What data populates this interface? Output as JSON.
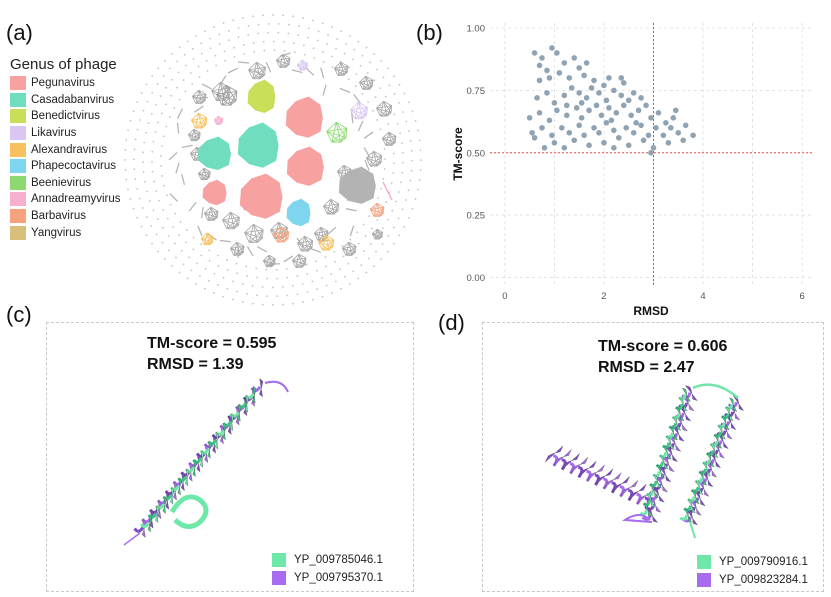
{
  "panels": {
    "a": {
      "label": "(a)"
    },
    "b": {
      "label": "(b)"
    },
    "c": {
      "label": "(c)"
    },
    "d": {
      "label": "(d)"
    }
  },
  "legend_a": {
    "title": "Genus of phage",
    "items": [
      {
        "label": "Pegunavirus",
        "color": "#F7A1A1"
      },
      {
        "label": "Casadabanvirus",
        "color": "#6FDDBE"
      },
      {
        "label": "Benedictvirus",
        "color": "#C9DE59"
      },
      {
        "label": "Likavirus",
        "color": "#D9C6F3"
      },
      {
        "label": "Alexandravirus",
        "color": "#F7C15E"
      },
      {
        "label": "Phapecoctavirus",
        "color": "#7ED6EE"
      },
      {
        "label": "Beenievirus",
        "color": "#8CD970"
      },
      {
        "label": "Annadreamyvirus",
        "color": "#F6AFCF"
      },
      {
        "label": "Barbavirus",
        "color": "#F7A27D"
      },
      {
        "label": "Yangvirus",
        "color": "#D9C07A"
      }
    ]
  },
  "chart_data": {
    "type": "scatter",
    "title": "",
    "xlabel": "RMSD",
    "ylabel": "TM-score",
    "xlim": [
      -0.3,
      6.2
    ],
    "ylim": [
      -0.03,
      1.02
    ],
    "xticks": [
      "0",
      "2",
      "4",
      "6"
    ],
    "xtick_values": [
      0,
      2,
      4,
      6
    ],
    "yticks": [
      "0.00",
      "0.25",
      "0.50",
      "0.75",
      "1.00"
    ],
    "ytick_values": [
      0,
      0.25,
      0.5,
      0.75,
      1.0
    ],
    "vline_x": 3.0,
    "hline_y": 0.5,
    "point_color": "#8FA3B3",
    "points": [
      [
        0.6,
        0.9
      ],
      [
        0.75,
        0.88
      ],
      [
        0.95,
        0.92
      ],
      [
        1.05,
        0.9
      ],
      [
        0.85,
        0.83
      ],
      [
        1.2,
        0.86
      ],
      [
        1.4,
        0.88
      ],
      [
        1.5,
        0.84
      ],
      [
        0.7,
        0.79
      ],
      [
        0.9,
        0.8
      ],
      [
        1.1,
        0.82
      ],
      [
        1.3,
        0.8
      ],
      [
        1.6,
        0.81
      ],
      [
        1.8,
        0.79
      ],
      [
        2.0,
        0.77
      ],
      [
        2.1,
        0.8
      ],
      [
        0.65,
        0.72
      ],
      [
        0.85,
        0.74
      ],
      [
        1.0,
        0.7
      ],
      [
        1.2,
        0.73
      ],
      [
        1.35,
        0.76
      ],
      [
        1.5,
        0.74
      ],
      [
        1.65,
        0.72
      ],
      [
        1.75,
        0.76
      ],
      [
        1.9,
        0.74
      ],
      [
        2.05,
        0.71
      ],
      [
        2.2,
        0.75
      ],
      [
        2.35,
        0.73
      ],
      [
        2.5,
        0.71
      ],
      [
        2.6,
        0.74
      ],
      [
        2.4,
        0.78
      ],
      [
        2.75,
        0.72
      ],
      [
        0.5,
        0.64
      ],
      [
        0.7,
        0.66
      ],
      [
        0.9,
        0.63
      ],
      [
        1.05,
        0.67
      ],
      [
        1.25,
        0.65
      ],
      [
        1.45,
        0.68
      ],
      [
        1.55,
        0.64
      ],
      [
        1.7,
        0.67
      ],
      [
        1.85,
        0.69
      ],
      [
        1.95,
        0.65
      ],
      [
        2.1,
        0.68
      ],
      [
        2.25,
        0.66
      ],
      [
        2.4,
        0.69
      ],
      [
        2.55,
        0.65
      ],
      [
        2.7,
        0.67
      ],
      [
        2.85,
        0.69
      ],
      [
        2.95,
        0.64
      ],
      [
        3.1,
        0.66
      ],
      [
        3.25,
        0.62
      ],
      [
        3.4,
        0.64
      ],
      [
        0.55,
        0.58
      ],
      [
        0.75,
        0.6
      ],
      [
        0.95,
        0.57
      ],
      [
        1.15,
        0.6
      ],
      [
        1.3,
        0.58
      ],
      [
        1.5,
        0.61
      ],
      [
        1.6,
        0.57
      ],
      [
        1.8,
        0.6
      ],
      [
        1.9,
        0.58
      ],
      [
        2.05,
        0.62
      ],
      [
        2.2,
        0.59
      ],
      [
        2.3,
        0.56
      ],
      [
        2.45,
        0.6
      ],
      [
        2.6,
        0.58
      ],
      [
        2.75,
        0.61
      ],
      [
        2.9,
        0.57
      ],
      [
        3.05,
        0.6
      ],
      [
        3.2,
        0.57
      ],
      [
        3.35,
        0.6
      ],
      [
        3.5,
        0.58
      ],
      [
        3.65,
        0.61
      ],
      [
        3.8,
        0.57
      ],
      [
        0.8,
        0.52
      ],
      [
        1.0,
        0.54
      ],
      [
        1.2,
        0.52
      ],
      [
        1.4,
        0.55
      ],
      [
        1.7,
        0.53
      ],
      [
        2.0,
        0.54
      ],
      [
        2.2,
        0.52
      ],
      [
        2.5,
        0.53
      ],
      [
        2.8,
        0.55
      ],
      [
        3.0,
        0.52
      ],
      [
        3.3,
        0.54
      ],
      [
        3.6,
        0.55
      ],
      [
        2.95,
        0.5
      ],
      [
        0.6,
        0.56
      ],
      [
        1.55,
        0.7
      ],
      [
        2.15,
        0.63
      ],
      [
        2.65,
        0.62
      ],
      [
        1.25,
        0.69
      ],
      [
        3.45,
        0.67
      ],
      [
        2.35,
        0.8
      ],
      [
        1.65,
        0.86
      ],
      [
        0.7,
        0.85
      ]
    ]
  },
  "panel_c": {
    "tm_line": "TM-score = 0.595",
    "rmsd_line": "RMSD = 1.39",
    "legend": [
      {
        "label": "YP_009785046.1",
        "color": "#6EE7A9"
      },
      {
        "label": "YP_009795370.1",
        "color": "#A66BEE"
      }
    ]
  },
  "panel_d": {
    "tm_line": "TM-score = 0.606",
    "rmsd_line": "RMSD = 2.47",
    "legend": [
      {
        "label": "YP_009790916.1",
        "color": "#6EE7A9"
      },
      {
        "label": "YP_009823284.1",
        "color": "#A66BEE"
      }
    ]
  }
}
